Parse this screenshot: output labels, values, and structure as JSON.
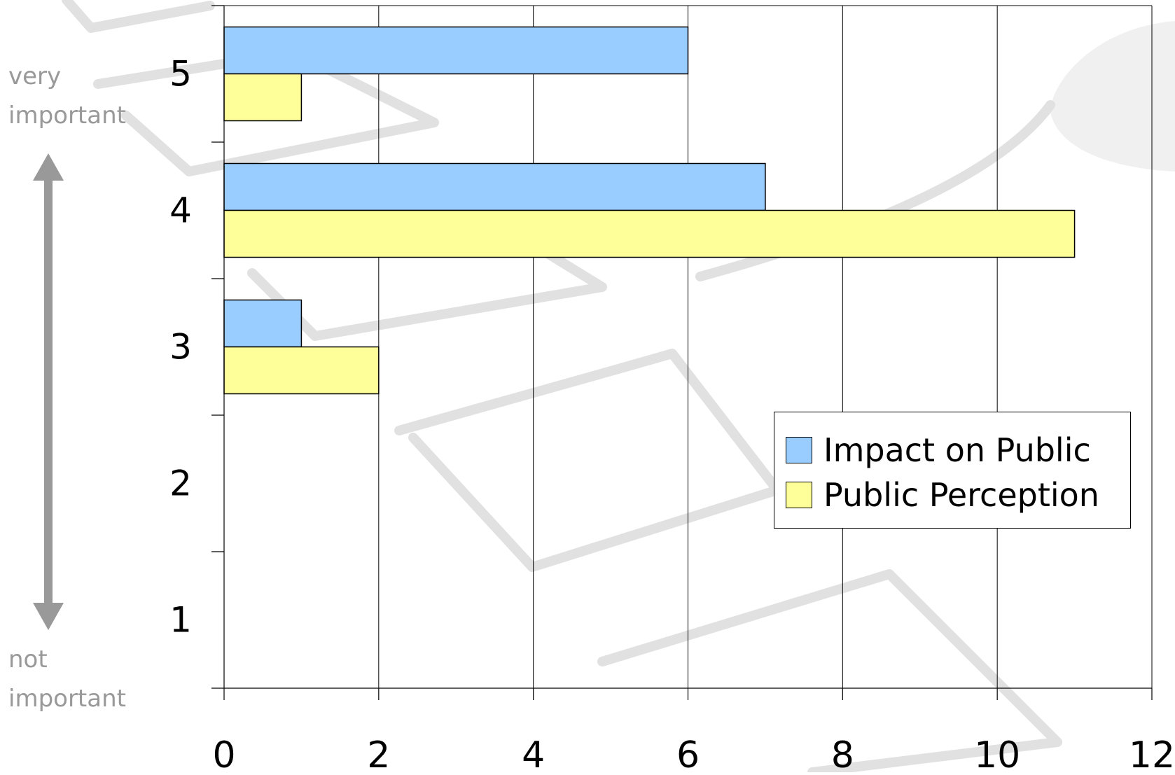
{
  "chart_data": {
    "type": "bar",
    "orientation": "horizontal",
    "categories": [
      "1",
      "2",
      "3",
      "4",
      "5"
    ],
    "series": [
      {
        "name": "Impact on Public",
        "values": [
          0,
          0,
          1,
          7,
          6
        ],
        "color": "#99CCFF"
      },
      {
        "name": "Public Perception",
        "values": [
          0,
          0,
          2,
          11,
          1
        ],
        "color": "#FFFF99"
      }
    ],
    "xlim": [
      0,
      12
    ],
    "xticks": [
      0,
      2,
      4,
      6,
      8,
      10,
      12
    ],
    "grid": true,
    "legend": "right",
    "scale_notes": {
      "top": [
        "very",
        "important"
      ],
      "bottom": [
        "not",
        "important"
      ]
    },
    "colors": {
      "text": "#000000",
      "note_text": "#999999",
      "arrow": "#999999",
      "grid": "#000000",
      "watermark": "#C8C8C8"
    }
  }
}
